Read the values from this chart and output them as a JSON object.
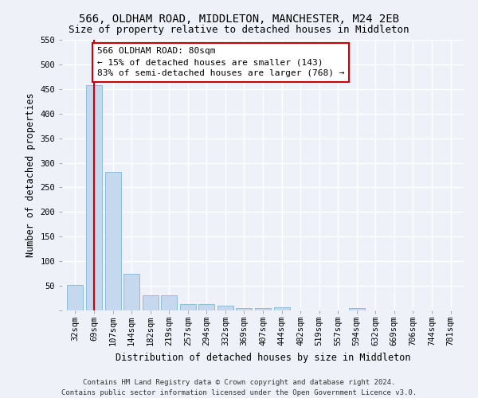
{
  "title": "566, OLDHAM ROAD, MIDDLETON, MANCHESTER, M24 2EB",
  "subtitle": "Size of property relative to detached houses in Middleton",
  "xlabel": "Distribution of detached houses by size in Middleton",
  "ylabel": "Number of detached properties",
  "categories": [
    "32sqm",
    "69sqm",
    "107sqm",
    "144sqm",
    "182sqm",
    "219sqm",
    "257sqm",
    "294sqm",
    "332sqm",
    "369sqm",
    "407sqm",
    "444sqm",
    "482sqm",
    "519sqm",
    "557sqm",
    "594sqm",
    "632sqm",
    "669sqm",
    "706sqm",
    "744sqm",
    "781sqm"
  ],
  "values": [
    52,
    457,
    282,
    75,
    30,
    30,
    13,
    13,
    9,
    5,
    5,
    6,
    0,
    0,
    0,
    5,
    0,
    0,
    0,
    0,
    0
  ],
  "bar_color": "#c5d8ed",
  "bar_edge_color": "#7fb8d8",
  "property_line_x": 1.0,
  "property_line_color": "#cc0000",
  "annotation_text": "566 OLDHAM ROAD: 80sqm\n← 15% of detached houses are smaller (143)\n83% of semi-detached houses are larger (768) →",
  "annotation_box_color": "#ffffff",
  "annotation_box_edge_color": "#cc0000",
  "ylim": [
    0,
    550
  ],
  "yticks": [
    0,
    50,
    100,
    150,
    200,
    250,
    300,
    350,
    400,
    450,
    500,
    550
  ],
  "footer_line1": "Contains HM Land Registry data © Crown copyright and database right 2024.",
  "footer_line2": "Contains public sector information licensed under the Open Government Licence v3.0.",
  "background_color": "#eef2f8",
  "grid_color": "#ffffff",
  "title_fontsize": 10,
  "subtitle_fontsize": 9,
  "axis_label_fontsize": 8.5,
  "tick_fontsize": 7.5,
  "annotation_fontsize": 8,
  "footer_fontsize": 6.5
}
